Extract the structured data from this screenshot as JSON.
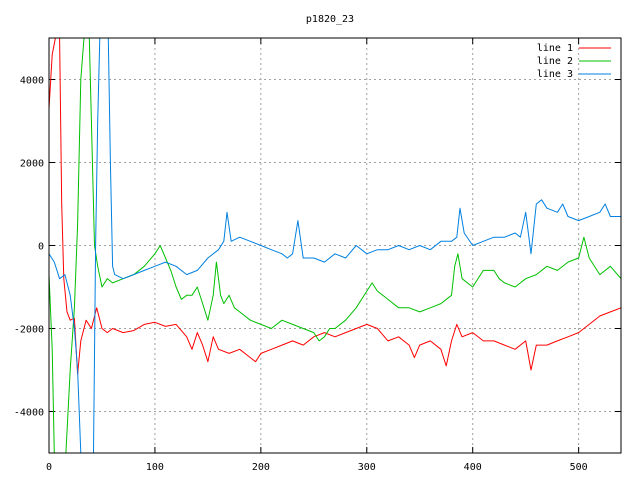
{
  "chart_data": {
    "type": "line",
    "title": "p1820_23",
    "xlabel": "",
    "ylabel": "",
    "xlim": [
      0,
      540
    ],
    "ylim": [
      -5000,
      5000
    ],
    "xticks": [
      0,
      100,
      200,
      300,
      400,
      500
    ],
    "yticks": [
      -4000,
      -2000,
      0,
      2000,
      4000
    ],
    "grid": true,
    "legend_position": "top-right",
    "series": [
      {
        "name": "line 1",
        "color": "#ff0000",
        "points": [
          [
            0,
            3300
          ],
          [
            3,
            4600
          ],
          [
            6,
            5000
          ],
          [
            10,
            5000
          ],
          [
            12,
            1000
          ],
          [
            14,
            -800
          ],
          [
            17,
            -1600
          ],
          [
            20,
            -1800
          ],
          [
            24,
            -1750
          ],
          [
            27,
            -3100
          ],
          [
            30,
            -2300
          ],
          [
            35,
            -1800
          ],
          [
            40,
            -2000
          ],
          [
            45,
            -1500
          ],
          [
            50,
            -2000
          ],
          [
            55,
            -2100
          ],
          [
            60,
            -2000
          ],
          [
            70,
            -2100
          ],
          [
            80,
            -2050
          ],
          [
            90,
            -1900
          ],
          [
            100,
            -1850
          ],
          [
            110,
            -1950
          ],
          [
            120,
            -1900
          ],
          [
            130,
            -2200
          ],
          [
            135,
            -2500
          ],
          [
            140,
            -2100
          ],
          [
            145,
            -2400
          ],
          [
            150,
            -2800
          ],
          [
            155,
            -2200
          ],
          [
            160,
            -2500
          ],
          [
            170,
            -2600
          ],
          [
            180,
            -2500
          ],
          [
            190,
            -2700
          ],
          [
            195,
            -2800
          ],
          [
            200,
            -2600
          ],
          [
            210,
            -2500
          ],
          [
            220,
            -2400
          ],
          [
            230,
            -2300
          ],
          [
            240,
            -2400
          ],
          [
            250,
            -2200
          ],
          [
            260,
            -2100
          ],
          [
            270,
            -2200
          ],
          [
            280,
            -2100
          ],
          [
            290,
            -2000
          ],
          [
            300,
            -1900
          ],
          [
            310,
            -2000
          ],
          [
            320,
            -2300
          ],
          [
            330,
            -2200
          ],
          [
            340,
            -2400
          ],
          [
            345,
            -2700
          ],
          [
            350,
            -2400
          ],
          [
            360,
            -2300
          ],
          [
            370,
            -2500
          ],
          [
            375,
            -2900
          ],
          [
            380,
            -2300
          ],
          [
            385,
            -1900
          ],
          [
            390,
            -2200
          ],
          [
            400,
            -2100
          ],
          [
            410,
            -2300
          ],
          [
            420,
            -2300
          ],
          [
            430,
            -2400
          ],
          [
            440,
            -2500
          ],
          [
            450,
            -2300
          ],
          [
            455,
            -3000
          ],
          [
            460,
            -2400
          ],
          [
            470,
            -2400
          ],
          [
            480,
            -2300
          ],
          [
            490,
            -2200
          ],
          [
            500,
            -2100
          ],
          [
            510,
            -1900
          ],
          [
            520,
            -1700
          ],
          [
            530,
            -1600
          ],
          [
            540,
            -1500
          ]
        ]
      },
      {
        "name": "line 2",
        "color": "#00c000",
        "points": [
          [
            0,
            -700
          ],
          [
            3,
            -2500
          ],
          [
            5,
            -5000
          ],
          [
            16,
            -5000
          ],
          [
            20,
            -3000
          ],
          [
            24,
            -1500
          ],
          [
            27,
            500
          ],
          [
            30,
            4000
          ],
          [
            33,
            5000
          ],
          [
            38,
            5000
          ],
          [
            40,
            3000
          ],
          [
            43,
            0
          ],
          [
            46,
            -500
          ],
          [
            50,
            -1000
          ],
          [
            55,
            -800
          ],
          [
            60,
            -900
          ],
          [
            70,
            -800
          ],
          [
            80,
            -700
          ],
          [
            90,
            -500
          ],
          [
            100,
            -200
          ],
          [
            105,
            0
          ],
          [
            110,
            -300
          ],
          [
            115,
            -600
          ],
          [
            120,
            -1000
          ],
          [
            125,
            -1300
          ],
          [
            130,
            -1200
          ],
          [
            135,
            -1200
          ],
          [
            140,
            -1000
          ],
          [
            145,
            -1400
          ],
          [
            150,
            -1800
          ],
          [
            155,
            -1200
          ],
          [
            158,
            -400
          ],
          [
            162,
            -1200
          ],
          [
            165,
            -1400
          ],
          [
            170,
            -1200
          ],
          [
            175,
            -1500
          ],
          [
            180,
            -1600
          ],
          [
            190,
            -1800
          ],
          [
            200,
            -1900
          ],
          [
            210,
            -2000
          ],
          [
            220,
            -1800
          ],
          [
            230,
            -1900
          ],
          [
            240,
            -2000
          ],
          [
            250,
            -2100
          ],
          [
            255,
            -2300
          ],
          [
            260,
            -2200
          ],
          [
            265,
            -2000
          ],
          [
            270,
            -2000
          ],
          [
            280,
            -1800
          ],
          [
            290,
            -1500
          ],
          [
            300,
            -1100
          ],
          [
            305,
            -900
          ],
          [
            310,
            -1100
          ],
          [
            320,
            -1300
          ],
          [
            330,
            -1500
          ],
          [
            340,
            -1500
          ],
          [
            350,
            -1600
          ],
          [
            360,
            -1500
          ],
          [
            370,
            -1400
          ],
          [
            380,
            -1200
          ],
          [
            383,
            -500
          ],
          [
            386,
            -200
          ],
          [
            390,
            -800
          ],
          [
            400,
            -1000
          ],
          [
            410,
            -600
          ],
          [
            420,
            -600
          ],
          [
            425,
            -800
          ],
          [
            430,
            -900
          ],
          [
            440,
            -1000
          ],
          [
            450,
            -800
          ],
          [
            460,
            -700
          ],
          [
            470,
            -500
          ],
          [
            480,
            -600
          ],
          [
            490,
            -400
          ],
          [
            500,
            -300
          ],
          [
            505,
            200
          ],
          [
            510,
            -300
          ],
          [
            520,
            -700
          ],
          [
            530,
            -500
          ],
          [
            540,
            -800
          ]
        ]
      },
      {
        "name": "line 3",
        "color": "#0080e0",
        "points": [
          [
            0,
            -200
          ],
          [
            5,
            -400
          ],
          [
            10,
            -800
          ],
          [
            15,
            -700
          ],
          [
            20,
            -1200
          ],
          [
            24,
            -2000
          ],
          [
            27,
            -3000
          ],
          [
            30,
            -5000
          ],
          [
            42,
            -5000
          ],
          [
            44,
            0
          ],
          [
            46,
            3000
          ],
          [
            48,
            5000
          ],
          [
            56,
            5000
          ],
          [
            58,
            2000
          ],
          [
            60,
            -500
          ],
          [
            62,
            -700
          ],
          [
            70,
            -800
          ],
          [
            80,
            -700
          ],
          [
            90,
            -600
          ],
          [
            100,
            -500
          ],
          [
            110,
            -400
          ],
          [
            120,
            -500
          ],
          [
            130,
            -700
          ],
          [
            140,
            -600
          ],
          [
            150,
            -300
          ],
          [
            160,
            -100
          ],
          [
            165,
            100
          ],
          [
            168,
            800
          ],
          [
            172,
            100
          ],
          [
            180,
            200
          ],
          [
            190,
            100
          ],
          [
            200,
            0
          ],
          [
            210,
            -100
          ],
          [
            220,
            -200
          ],
          [
            225,
            -300
          ],
          [
            230,
            -200
          ],
          [
            235,
            600
          ],
          [
            240,
            -300
          ],
          [
            250,
            -300
          ],
          [
            260,
            -400
          ],
          [
            270,
            -200
          ],
          [
            280,
            -300
          ],
          [
            290,
            0
          ],
          [
            300,
            -200
          ],
          [
            310,
            -100
          ],
          [
            320,
            -100
          ],
          [
            330,
            0
          ],
          [
            340,
            -100
          ],
          [
            350,
            0
          ],
          [
            360,
            -100
          ],
          [
            370,
            100
          ],
          [
            380,
            100
          ],
          [
            385,
            200
          ],
          [
            388,
            900
          ],
          [
            392,
            300
          ],
          [
            400,
            0
          ],
          [
            410,
            100
          ],
          [
            420,
            200
          ],
          [
            430,
            200
          ],
          [
            440,
            300
          ],
          [
            445,
            200
          ],
          [
            450,
            800
          ],
          [
            455,
            -200
          ],
          [
            460,
            1000
          ],
          [
            465,
            1100
          ],
          [
            470,
            900
          ],
          [
            480,
            800
          ],
          [
            485,
            1000
          ],
          [
            490,
            700
          ],
          [
            500,
            600
          ],
          [
            510,
            700
          ],
          [
            520,
            800
          ],
          [
            525,
            1000
          ],
          [
            530,
            700
          ],
          [
            540,
            700
          ]
        ]
      }
    ]
  }
}
